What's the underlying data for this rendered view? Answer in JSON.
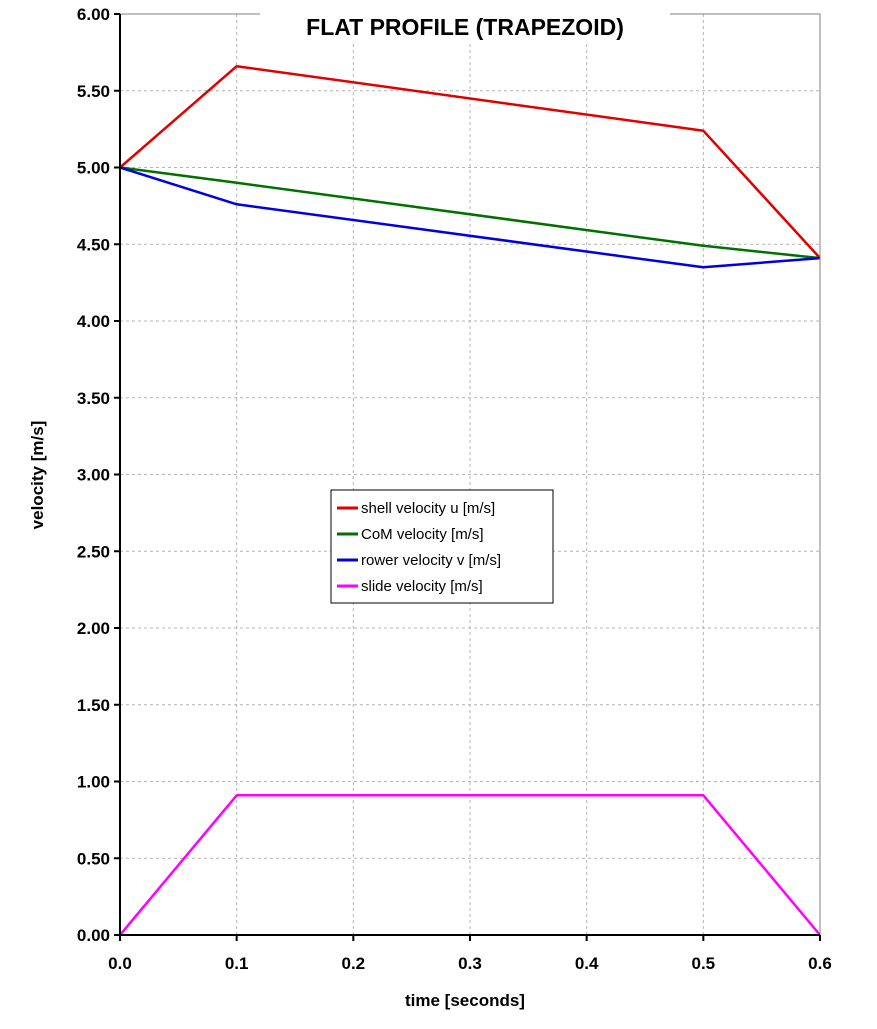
{
  "chart_data": {
    "type": "line",
    "title": "FLAT PROFILE (TRAPEZOID)",
    "xlabel": "time [seconds]",
    "ylabel": "velocity [m/s]",
    "xlim": [
      0.0,
      0.6
    ],
    "ylim": [
      0.0,
      6.0
    ],
    "x_ticks": [
      "0.0",
      "0.1",
      "0.2",
      "0.3",
      "0.4",
      "0.5",
      "0.6"
    ],
    "y_ticks": [
      "0.00",
      "0.50",
      "1.00",
      "1.50",
      "2.00",
      "2.50",
      "3.00",
      "3.50",
      "4.00",
      "4.50",
      "5.00",
      "5.50",
      "6.00"
    ],
    "grid": true,
    "legend_position": "center",
    "x": [
      0.0,
      0.1,
      0.5,
      0.6
    ],
    "series": [
      {
        "name": "shell velocity u [m/s]",
        "color": "#e00000",
        "values": [
          5.0,
          5.66,
          5.24,
          4.41
        ]
      },
      {
        "name": "CoM velocity [m/s]",
        "color": "#007000",
        "values": [
          5.0,
          4.9,
          4.49,
          4.41
        ]
      },
      {
        "name": "rower velocity v [m/s]",
        "color": "#0000e0",
        "values": [
          5.0,
          4.76,
          4.35,
          4.41
        ]
      },
      {
        "name": "slide velocity [m/s]",
        "color": "#ff00ff",
        "values": [
          0.0,
          0.91,
          0.91,
          0.0
        ]
      }
    ]
  }
}
